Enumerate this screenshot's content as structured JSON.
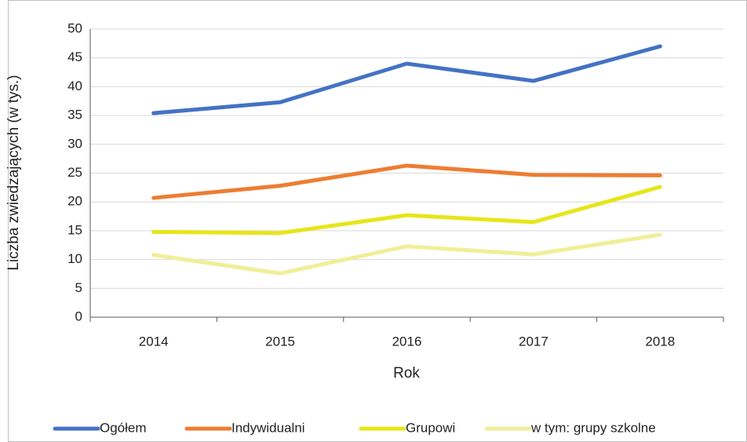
{
  "chart_data": {
    "type": "line",
    "categories": [
      "2014",
      "2015",
      "2016",
      "2017",
      "2018"
    ],
    "series": [
      {
        "name": "Ogółem",
        "color": "#4472c4",
        "values": [
          35.4,
          37.3,
          44.0,
          41.0,
          47.0
        ]
      },
      {
        "name": "Indywidualni",
        "color": "#ed7d31",
        "values": [
          20.7,
          22.8,
          26.3,
          24.7,
          24.6
        ]
      },
      {
        "name": "Grupowi",
        "color": "#e6e619",
        "values": [
          14.8,
          14.6,
          17.7,
          16.5,
          22.6
        ]
      },
      {
        "name": "w tym: grupy szkolne",
        "color": "#f1ee98",
        "values": [
          10.8,
          7.6,
          12.3,
          10.9,
          14.3
        ]
      }
    ],
    "ylim": [
      0,
      50
    ],
    "yticks": [
      0,
      5,
      10,
      15,
      20,
      25,
      30,
      35,
      40,
      45,
      50
    ],
    "y_label": "Liczba zwiedzających (w tys.)",
    "x_label": "Rok",
    "grid": true,
    "legend": "bottom"
  }
}
